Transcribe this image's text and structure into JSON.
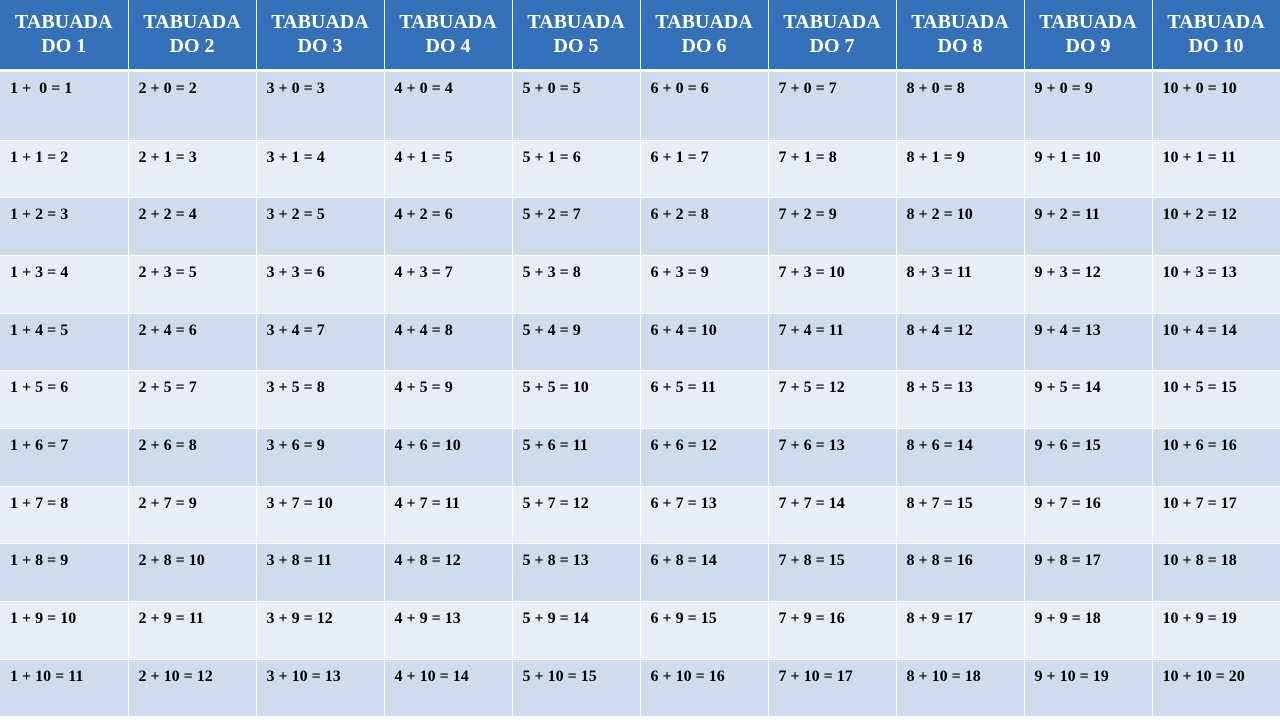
{
  "table": {
    "header": [
      "TABUADA DO 1",
      "TABUADA DO 2",
      "TABUADA DO 3",
      "TABUADA DO 4",
      "TABUADA DO 5",
      "TABUADA DO 6",
      "TABUADA DO 7",
      "TABUADA DO 8",
      "TABUADA DO 9",
      "TABUADA DO 10"
    ],
    "rows": [
      [
        "1 +  0 = 1",
        "2 + 0 = 2",
        "3 + 0 = 3",
        "4 + 0 = 4",
        "5 + 0 = 5",
        "6 + 0 = 6",
        "7 + 0 = 7",
        "8 + 0 = 8",
        "9 + 0 = 9",
        "10 + 0 = 10"
      ],
      [
        "1 + 1 = 2",
        "2 + 1 = 3",
        "3 + 1 = 4",
        "4 + 1 = 5",
        "5 + 1 = 6",
        "6 + 1 = 7",
        "7 + 1 = 8",
        "8 + 1 = 9",
        "9 + 1 = 10",
        "10 + 1 = 11"
      ],
      [
        "1 + 2 = 3",
        "2 + 2 = 4",
        "3 + 2 = 5",
        "4 + 2 = 6",
        "5 + 2 = 7",
        "6 + 2 = 8",
        "7 + 2 = 9",
        "8 + 2 = 10",
        "9 + 2 = 11",
        "10 + 2 = 12"
      ],
      [
        "1 + 3 = 4",
        "2 + 3 = 5",
        "3 + 3 = 6",
        "4 + 3 = 7",
        "5 + 3 = 8",
        "6 + 3 = 9",
        "7 + 3 = 10",
        "8 + 3 = 11",
        "9 + 3 = 12",
        "10 + 3 = 13"
      ],
      [
        "1 + 4 = 5",
        "2 + 4 = 6",
        "3 + 4 = 7",
        "4 + 4 = 8",
        "5 + 4 = 9",
        "6 + 4 = 10",
        "7 + 4 = 11",
        "8 + 4 = 12",
        "9 + 4 = 13",
        "10 + 4 = 14"
      ],
      [
        "1 + 5 = 6",
        "2 + 5 = 7",
        "3 + 5 = 8",
        "4 + 5 = 9",
        "5 + 5 = 10",
        "6 + 5 = 11",
        "7 + 5 = 12",
        "8 + 5 = 13",
        "9 + 5 = 14",
        "10 + 5 = 15"
      ],
      [
        "1 + 6 = 7",
        "2 + 6 = 8",
        "3 + 6 = 9",
        "4 + 6 = 10",
        "5 + 6 = 11",
        "6 + 6 = 12",
        "7 + 6 = 13",
        "8 + 6 = 14",
        "9 + 6 = 15",
        "10 + 6 = 16"
      ],
      [
        "1 + 7 = 8",
        "2 + 7 = 9",
        "3 + 7 = 10",
        "4 + 7 = 11",
        "5 + 7 = 12",
        "6 + 7 = 13",
        "7 + 7 = 14",
        "8 + 7 = 15",
        "9 + 7 = 16",
        "10 + 7 = 17"
      ],
      [
        "1 + 8 = 9",
        "2 + 8 = 10",
        "3 + 8 = 11",
        "4 + 8 = 12",
        "5 + 8 = 13",
        "6 + 8 = 14",
        "7 + 8 = 15",
        "8 + 8 = 16",
        "9 + 8 = 17",
        "10 + 8 = 18"
      ],
      [
        "1 + 9 = 10",
        "2 + 9 = 11",
        "3 + 9 = 12",
        "4 + 9 = 13",
        "5 + 9 = 14",
        "6 + 9 = 15",
        "7 + 9 = 16",
        "8 + 9 = 17",
        "9 + 9 = 18",
        "10 + 9 = 19"
      ],
      [
        "1 + 10 = 11",
        "2 + 10 = 12",
        "3 + 10 = 13",
        "4 + 10 = 14",
        "5 + 10 = 15",
        "6 + 10 = 16",
        "7 + 10 = 17",
        "8 + 10 = 18",
        "9 + 10 = 19",
        "10 + 10 = 20"
      ]
    ]
  }
}
